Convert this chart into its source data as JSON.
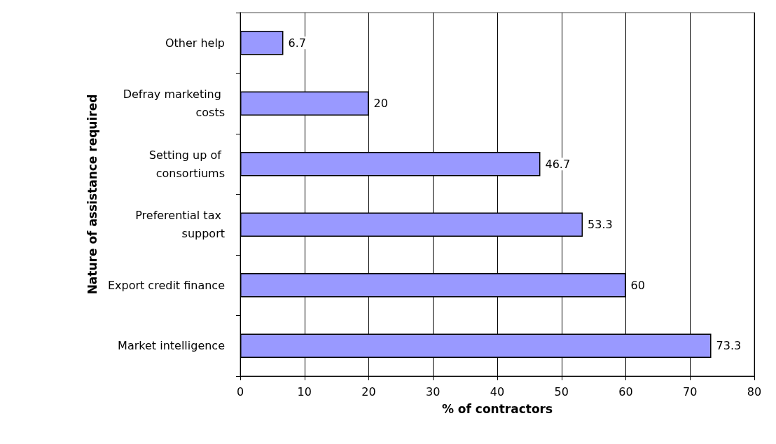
{
  "chart_data": {
    "type": "bar",
    "orientation": "horizontal",
    "xlabel": "% of contractors",
    "ylabel": "Nature of assistance required",
    "categories": [
      "Other help",
      "Defray marketing costs",
      "Setting up of consortiums",
      "Preferential tax support",
      "Export credit finance",
      "Market intelligence"
    ],
    "values": [
      6.7,
      20,
      46.7,
      53.3,
      60,
      73.3
    ],
    "color": "#9999ff",
    "xlim": [
      0,
      80
    ],
    "xticks": [
      0,
      10,
      20,
      30,
      40,
      50,
      60,
      70,
      80
    ],
    "grid": "x",
    "data_labels": true
  }
}
